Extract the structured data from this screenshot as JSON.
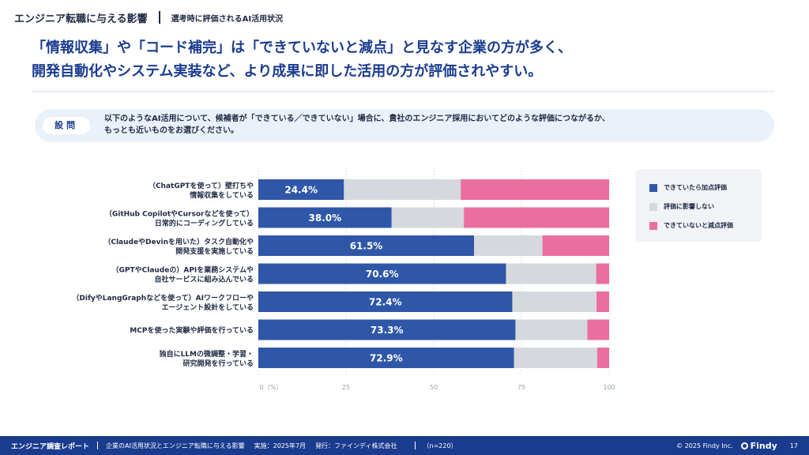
{
  "header": {
    "section_title": "エンジニア転職に与える影響",
    "sub_title": "選考時に評価されるAI活用状況"
  },
  "headline": {
    "line1": "「情報収集」や「コード補完」は「できていないと減点」と見なす企業の方が多く、",
    "line2": "開発自動化やシステム実装など、より成果に即した活用の方が評価されやすい。"
  },
  "question": {
    "badge": "設問",
    "line1": "以下のようなAI活用について、候補者が「できている／できていない」場合に、貴社のエンジニア採用においてどのような評価につながるか、",
    "line2": "もっとも近いものをお選びください。"
  },
  "colors": {
    "positive": "#2f57a8",
    "neutral": "#d5d8dc",
    "negative": "#ea6e9e"
  },
  "chart_data": {
    "type": "bar",
    "orientation": "horizontal",
    "stacked": true,
    "categories": [
      [
        "（ChatGPTを使って）壁打ちや",
        "情報収集をしている"
      ],
      [
        "（GitHub CopilotやCursorなどを使って）",
        "日常的にコーディングしている"
      ],
      [
        "（ClaudeやDevinを用いた）タスク自動化や",
        "開発支援を実施している"
      ],
      [
        "（GPTやClaudeの）APIを業務システムや",
        "自社サービスに組み込んでいる"
      ],
      [
        "（DifyやLangGraphなどを使って）AIワークフローや",
        "エージェント設計をしている"
      ],
      [
        "MCPを使った実験や評価を行っている"
      ],
      [
        "独自にLLMの微調整・学習・",
        "研究開発を行っている"
      ]
    ],
    "series": [
      {
        "name": "できていたら加点評価",
        "values": [
          24.4,
          38.0,
          61.5,
          70.6,
          72.4,
          73.3,
          72.9
        ]
      },
      {
        "name": "評価に影響しない",
        "values": [
          33.3,
          20.6,
          19.5,
          25.7,
          24.0,
          20.5,
          23.7
        ]
      },
      {
        "name": "できていないと減点評価",
        "values": [
          42.3,
          41.4,
          19.0,
          3.7,
          3.6,
          6.2,
          3.4
        ]
      }
    ],
    "data_labels": [
      "24.4%",
      "38.0%",
      "61.5%",
      "70.6%",
      "72.4%",
      "73.3%",
      "72.9%"
    ],
    "xlim": [
      0,
      100
    ],
    "xticks": [
      "0（%）",
      "25",
      "50",
      "75",
      "100"
    ],
    "grid": true,
    "legend_position": "right"
  },
  "footer": {
    "report": "エンジニア調査レポート",
    "survey": "企業のAI活用状況とエンジニア転職に与える影響",
    "date": "実施：2025年7月",
    "publisher": "発行：ファインディ株式会社",
    "n": "（n=220）",
    "copyright": "© 2025 Findy Inc.",
    "brand": "Findy",
    "page": "17"
  }
}
